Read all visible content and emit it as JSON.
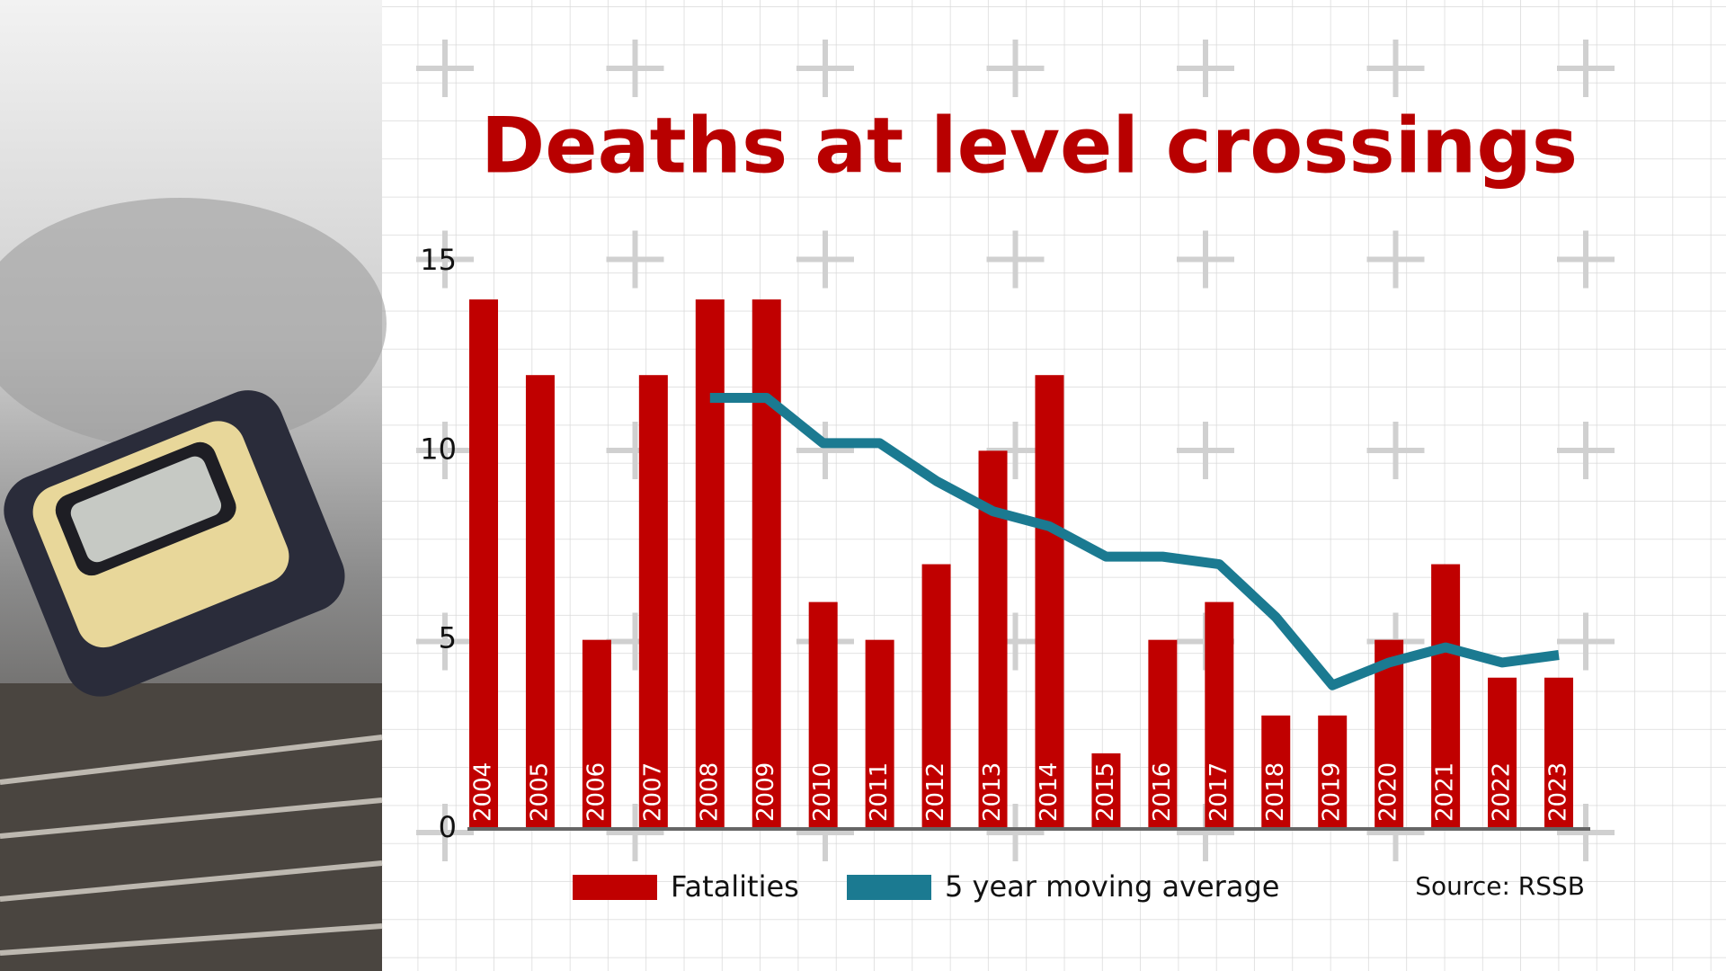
{
  "chart_data": {
    "type": "bar",
    "title": "Deaths at level crossings",
    "source": "Source: RSSB",
    "categories": [
      "2004",
      "2005",
      "2006",
      "2007",
      "2008",
      "2009",
      "2010",
      "2011",
      "2012",
      "2013",
      "2014",
      "2015",
      "2016",
      "2017",
      "2018",
      "2019",
      "2020",
      "2021",
      "2022",
      "2023"
    ],
    "series": [
      {
        "name": "Fatalities",
        "type": "bar",
        "color": "#c00000",
        "values": [
          14,
          12,
          5,
          12,
          14,
          14,
          6,
          5,
          7,
          10,
          12,
          2,
          5,
          6,
          3,
          3,
          5,
          7,
          4,
          4
        ]
      },
      {
        "name": "5 year moving average",
        "type": "line",
        "color": "#1b7a91",
        "values": [
          null,
          null,
          null,
          null,
          11.4,
          11.4,
          10.2,
          10.2,
          9.2,
          8.4,
          8.0,
          7.2,
          7.2,
          7.0,
          5.6,
          3.8,
          4.4,
          4.8,
          4.4,
          4.6
        ]
      }
    ],
    "ylim": [
      0,
      15
    ],
    "yticks": [
      0,
      5,
      10,
      15
    ]
  }
}
